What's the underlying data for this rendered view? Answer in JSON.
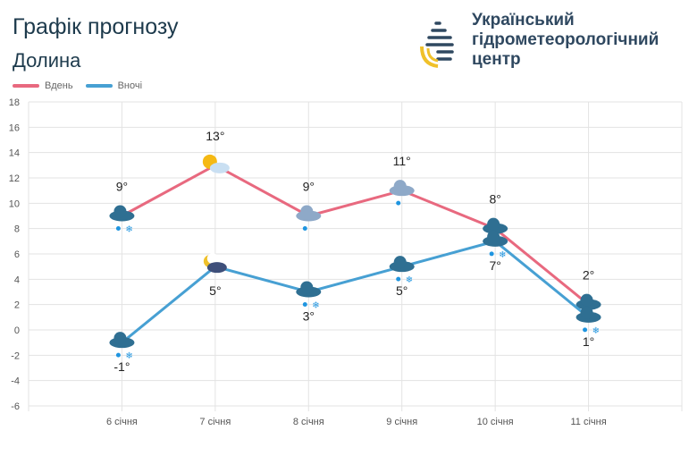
{
  "header": {
    "title": "Графік прогнозу",
    "location": "Долина"
  },
  "org": {
    "line1": "Український",
    "line2": "гідрометеорологічний",
    "line3": "центр"
  },
  "chart_data": {
    "type": "line",
    "categories": [
      "6 січня",
      "7 січня",
      "8 січня",
      "9 січня",
      "10 січня",
      "11 січня"
    ],
    "series": [
      {
        "name": "Вдень",
        "color": "#e8697f",
        "values": [
          9,
          13,
          9,
          11,
          8,
          2
        ],
        "labels": [
          "9°",
          "13°",
          "9°",
          "11°",
          "8°",
          "2°"
        ],
        "icons": [
          "cloud-rain-snow",
          "sun-cloud",
          "cloud-rain",
          "cloud-rain",
          "cloud-rain",
          "cloud-rain-snow"
        ]
      },
      {
        "name": "Вночі",
        "color": "#47a0d3",
        "values": [
          -1,
          5,
          3,
          5,
          7,
          1
        ],
        "labels": [
          "-1°",
          "5°",
          "3°",
          "5°",
          "7°",
          "1°"
        ],
        "icons": [
          "cloud-rain-snow",
          "moon-cloud",
          "cloud-rain-snow",
          "cloud-rain-snow",
          "cloud-rain-snow",
          "cloud-rain-snow"
        ]
      }
    ],
    "ylim": [
      -6,
      18
    ],
    "yticks": [
      "18",
      "16",
      "14",
      "12",
      "10",
      "8",
      "6",
      "4",
      "2",
      "0",
      "-2",
      "-4",
      "-6"
    ],
    "grid": true,
    "legend": "top-left"
  }
}
